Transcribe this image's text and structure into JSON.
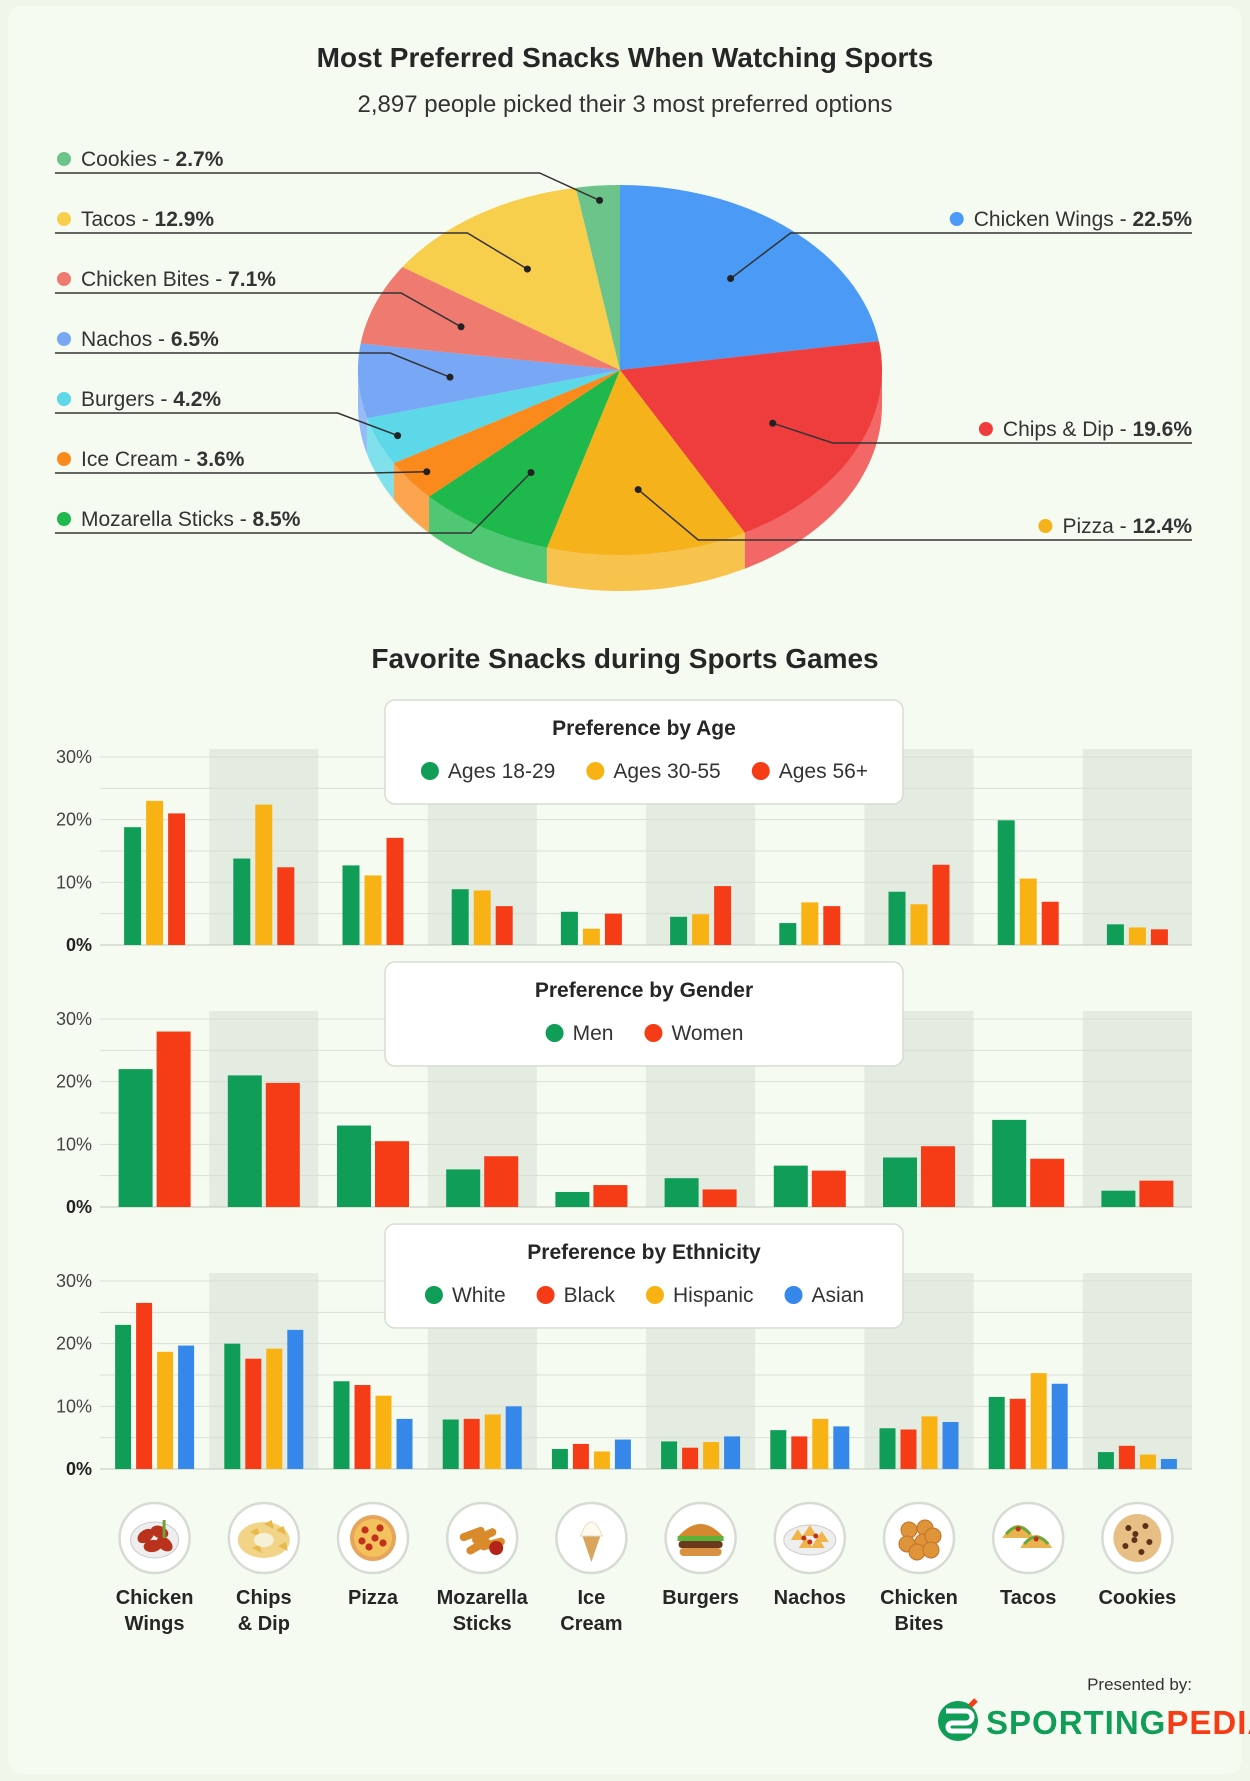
{
  "pie": {
    "title": "Most Preferred Snacks When Watching Sports",
    "subtitle": "2,897 people picked their 3 most preferred options"
  },
  "bars": {
    "title": "Favorite Snacks during Sports Games"
  },
  "footer": {
    "presented_by": "Presented by:",
    "brand_part1": "SPORTING",
    "brand_part2": "PEDIA"
  },
  "colors": {
    "green": "#0f9d58",
    "orange": "#f9b214",
    "red": "#f53c16",
    "blue": "#3587ea"
  },
  "chart_data": [
    {
      "type": "pie",
      "title": "Most Preferred Snacks When Watching Sports",
      "subtitle": "2,897 people picked their 3 most preferred options",
      "slices": [
        {
          "label": "Chicken Wings",
          "value": 22.5,
          "color": "#4a9af6"
        },
        {
          "label": "Chips & Dip",
          "value": 19.6,
          "color": "#ef3c3c"
        },
        {
          "label": "Pizza",
          "value": 12.4,
          "color": "#f6b21b"
        },
        {
          "label": "Mozarella Sticks",
          "value": 8.5,
          "color": "#1fb84c"
        },
        {
          "label": "Ice Cream",
          "value": 3.6,
          "color": "#fb8a1c"
        },
        {
          "label": "Burgers",
          "value": 4.2,
          "color": "#5cd8e8"
        },
        {
          "label": "Nachos",
          "value": 6.5,
          "color": "#78a8f5"
        },
        {
          "label": "Chicken Bites",
          "value": 7.1,
          "color": "#ef7a70"
        },
        {
          "label": "Tacos",
          "value": 12.9,
          "color": "#f8cf4c"
        },
        {
          "label": "Cookies",
          "value": 2.7,
          "color": "#6cc48a"
        }
      ]
    },
    {
      "type": "bar",
      "title": "Preference by Age",
      "categories": [
        "Chicken Wings",
        "Chips & Dip",
        "Pizza",
        "Mozarella Sticks",
        "Ice Cream",
        "Burgers",
        "Nachos",
        "Chicken Bites",
        "Tacos",
        "Cookies"
      ],
      "yticks": [
        "30%",
        "20%",
        "10%",
        "0%"
      ],
      "ylim": [
        0,
        30
      ],
      "series": [
        {
          "name": "Ages 18-29",
          "color": "#0f9d58",
          "values": [
            18.8,
            13.8,
            12.7,
            8.9,
            5.3,
            4.5,
            3.5,
            8.5,
            19.9,
            3.3
          ]
        },
        {
          "name": "Ages 30-55",
          "color": "#f9b214",
          "values": [
            23,
            22.4,
            11.1,
            8.7,
            2.6,
            4.9,
            6.8,
            6.5,
            10.6,
            2.8
          ]
        },
        {
          "name": "Ages 56+",
          "color": "#f53c16",
          "values": [
            21,
            12.4,
            17.1,
            6.2,
            5,
            9.4,
            6.2,
            12.8,
            6.9,
            2.5
          ]
        }
      ]
    },
    {
      "type": "bar",
      "title": "Preference by Gender",
      "categories": [
        "Chicken Wings",
        "Chips & Dip",
        "Pizza",
        "Mozarella Sticks",
        "Ice Cream",
        "Burgers",
        "Nachos",
        "Chicken Bites",
        "Tacos",
        "Cookies"
      ],
      "yticks": [
        "30%",
        "20%",
        "10%",
        "0%"
      ],
      "ylim": [
        0,
        30
      ],
      "series": [
        {
          "name": "Men",
          "color": "#0f9d58",
          "values": [
            22,
            21,
            13,
            6,
            2.4,
            4.6,
            6.6,
            7.9,
            13.9,
            2.6
          ]
        },
        {
          "name": "Women",
          "color": "#f53c16",
          "values": [
            28,
            19.8,
            10.5,
            8.1,
            3.5,
            2.8,
            5.8,
            9.7,
            7.7,
            4.2
          ]
        }
      ]
    },
    {
      "type": "bar",
      "title": "Preference by Ethnicity",
      "categories": [
        "Chicken Wings",
        "Chips & Dip",
        "Pizza",
        "Mozarella Sticks",
        "Ice Cream",
        "Burgers",
        "Nachos",
        "Chicken Bites",
        "Tacos",
        "Cookies"
      ],
      "yticks": [
        "30%",
        "20%",
        "10%",
        "0%"
      ],
      "ylim": [
        0,
        30
      ],
      "series": [
        {
          "name": "White",
          "color": "#0f9d58",
          "values": [
            23,
            20,
            14,
            7.9,
            3.2,
            4.4,
            6.2,
            6.5,
            11.5,
            2.7
          ]
        },
        {
          "name": "Black",
          "color": "#f53c16",
          "values": [
            26.5,
            17.6,
            13.4,
            8.0,
            4.0,
            3.4,
            5.2,
            6.3,
            11.2,
            3.7
          ]
        },
        {
          "name": "Hispanic",
          "color": "#f9b214",
          "values": [
            18.7,
            19.2,
            11.7,
            8.7,
            2.8,
            4.3,
            8.0,
            8.4,
            15.3,
            2.3
          ]
        },
        {
          "name": "Asian",
          "color": "#3587ea",
          "values": [
            19.7,
            22.2,
            8.0,
            10.0,
            4.7,
            5.2,
            6.8,
            7.5,
            13.6,
            1.6
          ]
        }
      ]
    }
  ],
  "category_labels": [
    {
      "line1": "Chicken",
      "line2": "Wings",
      "icon": "chicken-wings-icon"
    },
    {
      "line1": "Chips",
      "line2": "& Dip",
      "icon": "chips-dip-icon"
    },
    {
      "line1": "Pizza",
      "line2": "",
      "icon": "pizza-icon"
    },
    {
      "line1": "Mozarella",
      "line2": "Sticks",
      "icon": "mozarella-sticks-icon"
    },
    {
      "line1": "Ice",
      "line2": "Cream",
      "icon": "ice-cream-icon"
    },
    {
      "line1": "Burgers",
      "line2": "",
      "icon": "burger-icon"
    },
    {
      "line1": "Nachos",
      "line2": "",
      "icon": "nachos-icon"
    },
    {
      "line1": "Chicken",
      "line2": "Bites",
      "icon": "chicken-bites-icon"
    },
    {
      "line1": "Tacos",
      "line2": "",
      "icon": "tacos-icon"
    },
    {
      "line1": "Cookies",
      "line2": "",
      "icon": "cookies-icon"
    }
  ]
}
